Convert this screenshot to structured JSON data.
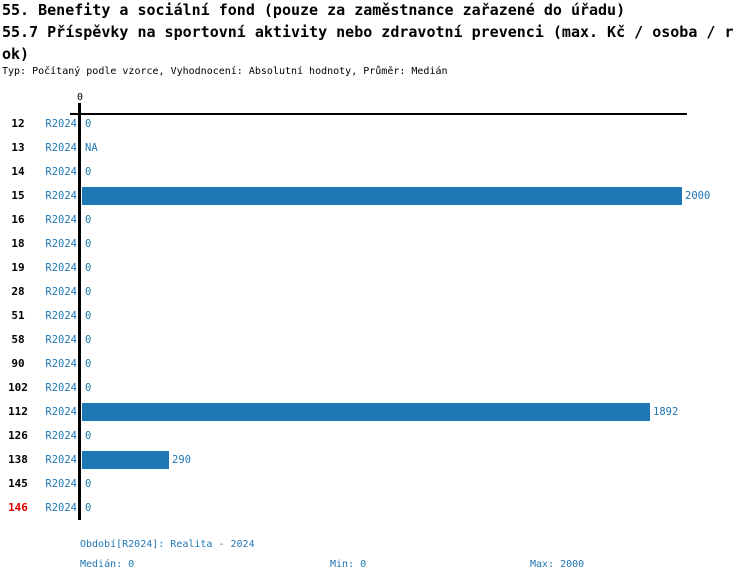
{
  "header": {
    "title_lines": [
      "55. Benefity a sociální fond (pouze za zaměstnance zařazené do úřadu)",
      "55.7 Příspěvky na sportovní aktivity nebo zdravotní prevenci (max. Kč / osoba / r",
      "ok)"
    ],
    "meta_line": "Typ: Počítaný podle vzorce, Vyhodnocení: Absolutní hodnoty, Průměr: Medián"
  },
  "chart_data": {
    "type": "bar",
    "orientation": "horizontal",
    "axis_tick_label": "0",
    "series_label": "R2024",
    "categories": [
      "12",
      "13",
      "14",
      "15",
      "16",
      "18",
      "19",
      "28",
      "51",
      "58",
      "90",
      "102",
      "112",
      "126",
      "138",
      "145",
      "146"
    ],
    "values": [
      0,
      null,
      0,
      2000,
      0,
      0,
      0,
      0,
      0,
      0,
      0,
      0,
      1892,
      0,
      290,
      0,
      0
    ],
    "value_labels": [
      "0",
      "NA",
      "0",
      "2000",
      "0",
      "0",
      "0",
      "0",
      "0",
      "0",
      "0",
      "0",
      "1892",
      "0",
      "290",
      "0",
      "0"
    ],
    "highlighted_categories": [
      "146"
    ],
    "xlim": [
      0,
      2000
    ],
    "legend_position": "none",
    "grid": false
  },
  "colors": {
    "bar": "#1f77b4",
    "blue_text": "#1f77b4",
    "highlight_text": "#e00000",
    "axis": "#000000"
  },
  "footer": {
    "period_line": "Období[R2024]: Realita - 2024",
    "median_label": "Medián: 0",
    "min_label": "Min: 0",
    "max_label": "Max: 2000"
  }
}
